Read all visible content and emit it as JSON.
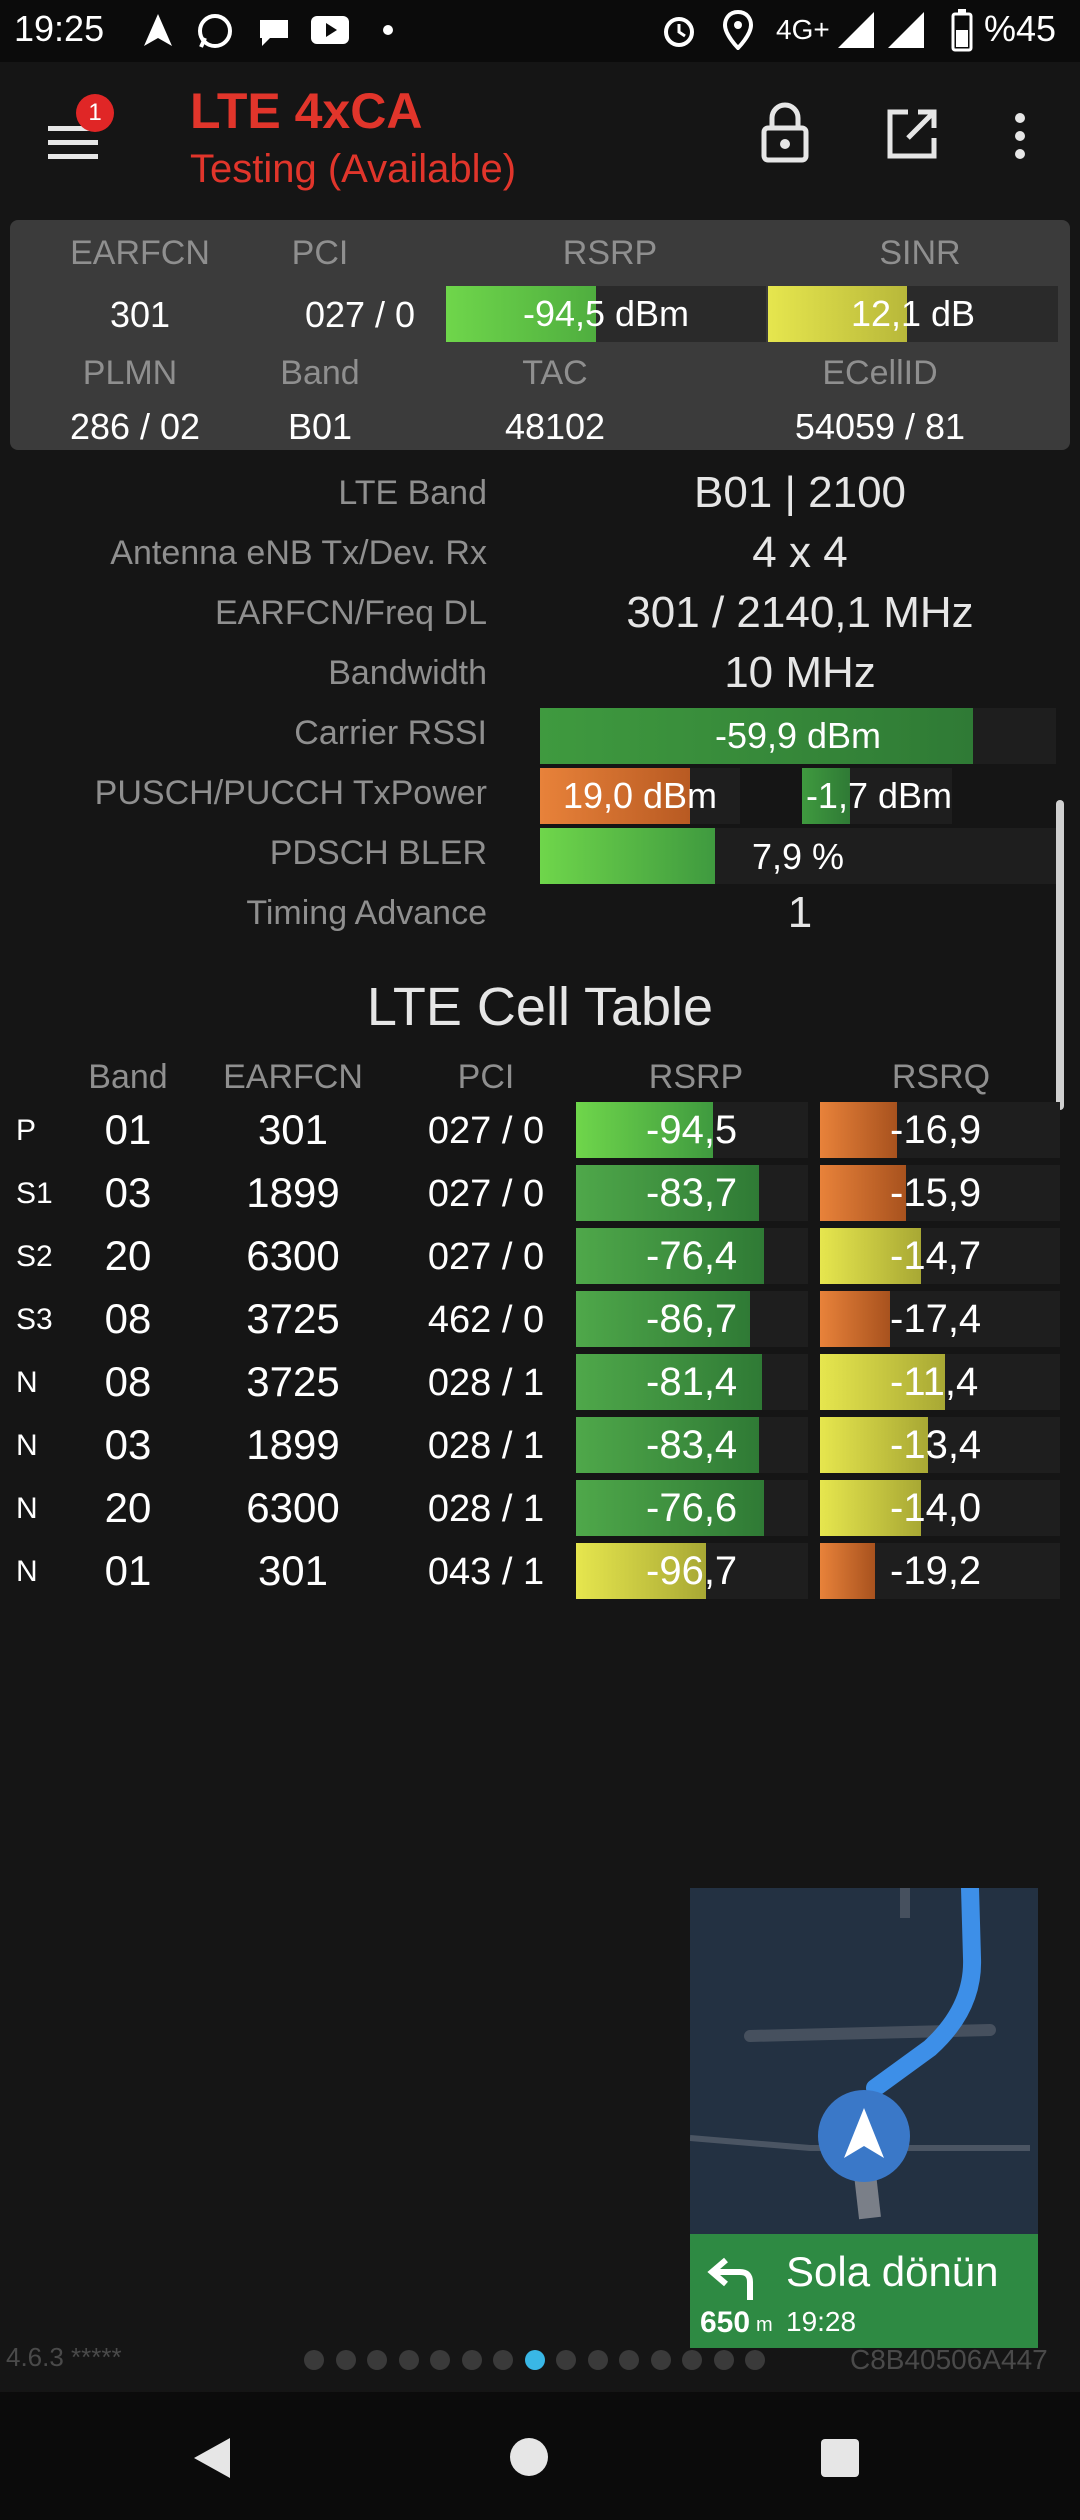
{
  "status_bar": {
    "time": "19:25",
    "network": "4G+",
    "battery": "%45"
  },
  "app_bar": {
    "badge_count": "1",
    "title": "LTE 4xCA",
    "subtitle": "Testing (Available)"
  },
  "summary": {
    "headers": [
      "EARFCN",
      "PCI",
      "RSRP",
      "SINR"
    ],
    "earfcn": "301",
    "pci": "027 / 0",
    "rsrp": {
      "text": "-94,5 dBm",
      "level": 0.47
    },
    "sinr": {
      "text": "12,1 dB",
      "level": 0.48
    },
    "headers2": [
      "PLMN",
      "Band",
      "TAC",
      "ECellID"
    ],
    "plmn": "286 / 02",
    "band": "B01",
    "tac": "48102",
    "ecellid": "54059 / 81"
  },
  "details": {
    "lte_band_label": "LTE Band",
    "lte_band_value": "B01 | 2100",
    "antenna_label": "Antenna eNB Tx/Dev. Rx",
    "antenna_value": "4 x 4",
    "earfcn_freq_label": "EARFCN/Freq DL",
    "earfcn_freq_value": "301 / 2140,1 MHz",
    "bandwidth_label": "Bandwidth",
    "bandwidth_value": "10 MHz",
    "rssi_label": "Carrier RSSI",
    "rssi": {
      "text": "-59,9 dBm",
      "level": 0.84
    },
    "txpower_label": "PUSCH/PUCCH TxPower",
    "pusch": {
      "text": "19,0 dBm",
      "level": 0.75
    },
    "pucch": {
      "text": "-1,7 dBm",
      "level": 0.32
    },
    "bler_label": "PDSCH BLER",
    "bler": {
      "text": "7,9 %",
      "level": 0.34
    },
    "timing_label": "Timing Advance",
    "timing_value": "1"
  },
  "cell_table": {
    "title": "LTE Cell Table",
    "headers": [
      "Band",
      "EARFCN",
      "PCI",
      "RSRP",
      "RSRQ"
    ],
    "rows": [
      {
        "type": "P",
        "band": "01",
        "earfcn": "301",
        "pci": "027 / 0",
        "rsrp": "-94,5",
        "rsrp_level": 0.59,
        "rsrq": "-16,9",
        "rsrq_level": 0.32
      },
      {
        "type": "S1",
        "band": "03",
        "earfcn": "1899",
        "pci": "027 / 0",
        "rsrp": "-83,7",
        "rsrp_level": 0.79,
        "rsrq": "-15,9",
        "rsrq_level": 0.36
      },
      {
        "type": "S2",
        "band": "20",
        "earfcn": "6300",
        "pci": "027 / 0",
        "rsrp": "-76,4",
        "rsrp_level": 0.81,
        "rsrq": "-14,7",
        "rsrq_level": 0.42
      },
      {
        "type": "S3",
        "band": "08",
        "earfcn": "3725",
        "pci": "462 / 0",
        "rsrp": "-86,7",
        "rsrp_level": 0.75,
        "rsrq": "-17,4",
        "rsrq_level": 0.29
      },
      {
        "type": "N",
        "band": "08",
        "earfcn": "3725",
        "pci": "028 / 1",
        "rsrp": "-81,4",
        "rsrp_level": 0.8,
        "rsrq": "-11,4",
        "rsrq_level": 0.52
      },
      {
        "type": "N",
        "band": "03",
        "earfcn": "1899",
        "pci": "028 / 1",
        "rsrp": "-83,4",
        "rsrp_level": 0.79,
        "rsrq": "-13,4",
        "rsrq_level": 0.45
      },
      {
        "type": "N",
        "band": "20",
        "earfcn": "6300",
        "pci": "028 / 1",
        "rsrp": "-76,6",
        "rsrp_level": 0.81,
        "rsrq": "-14,0",
        "rsrq_level": 0.42
      },
      {
        "type": "N",
        "band": "01",
        "earfcn": "301",
        "pci": "043 / 1",
        "rsrp": "-96,7",
        "rsrp_level": 0.56,
        "rsrq": "-19,2",
        "rsrq_level": 0.23
      }
    ]
  },
  "navigation_overlay": {
    "instruction": "Sola dönün",
    "distance": "650",
    "distance_unit": "m",
    "time": "19:28"
  },
  "footer": {
    "version": "4.6.3 *****",
    "device_id": "C8B40506A447",
    "page_count": 15,
    "active_page": 7
  },
  "colors": {
    "accent_red": "#e1352b",
    "good_green": "#6fd64b",
    "mid_green": "#3f8f3c",
    "yellow": "#dcdc4a",
    "orange": "#e07a35",
    "active_dot": "#39b7e6"
  }
}
